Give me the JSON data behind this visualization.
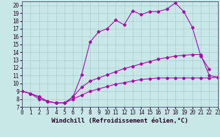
{
  "xlabel": "Windchill (Refroidissement éolien,°C)",
  "bg_color": "#c8e8e8",
  "grid_color": "#aacccc",
  "line_color": "#aa00aa",
  "xlim": [
    0,
    23
  ],
  "ylim": [
    7,
    20.5
  ],
  "xticks": [
    0,
    1,
    2,
    3,
    4,
    5,
    6,
    7,
    8,
    9,
    10,
    11,
    12,
    13,
    14,
    15,
    16,
    17,
    18,
    19,
    20,
    21,
    22,
    23
  ],
  "yticks": [
    7,
    8,
    9,
    10,
    11,
    12,
    13,
    14,
    15,
    16,
    17,
    18,
    19,
    20
  ],
  "series1": {
    "x": [
      0,
      1,
      2,
      3,
      4,
      5,
      6,
      7,
      8,
      9,
      10,
      11,
      12,
      13,
      14,
      15,
      16,
      17,
      18,
      19,
      20,
      21,
      22,
      23
    ],
    "y": [
      9.0,
      8.7,
      8.3,
      7.7,
      7.5,
      7.5,
      8.3,
      9.5,
      10.3,
      10.7,
      11.1,
      11.5,
      11.9,
      12.2,
      12.5,
      12.8,
      13.1,
      13.3,
      13.5,
      13.6,
      13.7,
      13.7,
      11.0,
      10.8
    ]
  },
  "series2": {
    "x": [
      0,
      1,
      2,
      3,
      4,
      5,
      6,
      7,
      8,
      9,
      10,
      11,
      12,
      13,
      14,
      15,
      16,
      17,
      18,
      19,
      20,
      21,
      22
    ],
    "y": [
      9.0,
      8.7,
      8.3,
      7.7,
      7.5,
      7.5,
      8.3,
      11.1,
      15.3,
      16.6,
      17.0,
      18.1,
      17.5,
      19.3,
      18.8,
      19.2,
      19.2,
      19.5,
      20.3,
      19.2,
      17.2,
      13.5,
      11.8
    ]
  },
  "series3": {
    "x": [
      0,
      1,
      2,
      3,
      4,
      5,
      6,
      7,
      8,
      9,
      10,
      11,
      12,
      13,
      14,
      15,
      16,
      17,
      18,
      19,
      20,
      21,
      22,
      23
    ],
    "y": [
      9.0,
      8.7,
      8.0,
      7.7,
      7.5,
      7.5,
      8.0,
      8.5,
      9.0,
      9.3,
      9.6,
      9.9,
      10.1,
      10.3,
      10.5,
      10.6,
      10.7,
      10.7,
      10.7,
      10.7,
      10.7,
      10.7,
      10.7,
      10.8
    ]
  },
  "marker": "D",
  "marker_size": 2.0,
  "linewidth": 0.8,
  "xlabel_fontsize": 6.5,
  "tick_fontsize": 5.5
}
